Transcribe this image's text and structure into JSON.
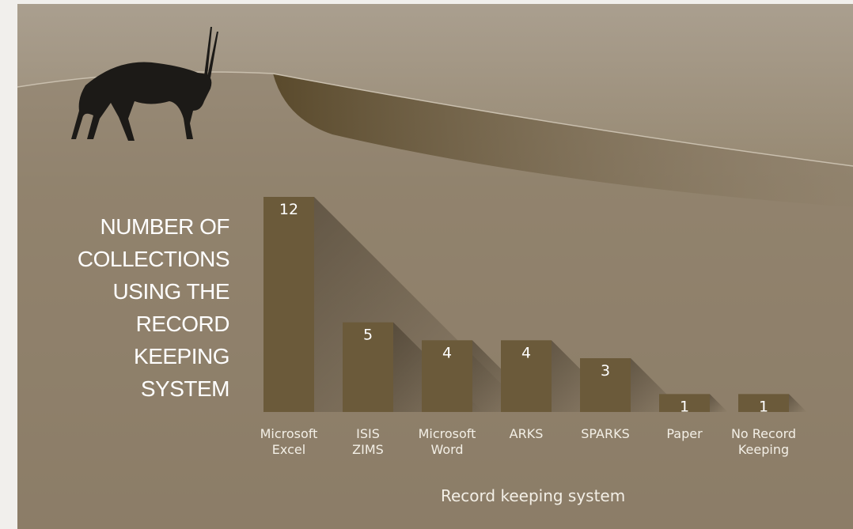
{
  "chart_data": {
    "type": "bar",
    "title": "NUMBER OF\nCOLLECTIONS\nUSING THE\nRECORD\nKEEPING\nSYSTEM",
    "x_label": "Record keeping system",
    "categories": [
      "Microsoft\nExcel",
      "ISIS\nZIMS",
      "Microsoft\nWord",
      "ARKS",
      "SPARKS",
      "Paper",
      "No Record\nKeeping"
    ],
    "values": [
      12,
      5,
      4,
      4,
      3,
      1,
      1
    ],
    "color": "#6b5a3a"
  }
}
